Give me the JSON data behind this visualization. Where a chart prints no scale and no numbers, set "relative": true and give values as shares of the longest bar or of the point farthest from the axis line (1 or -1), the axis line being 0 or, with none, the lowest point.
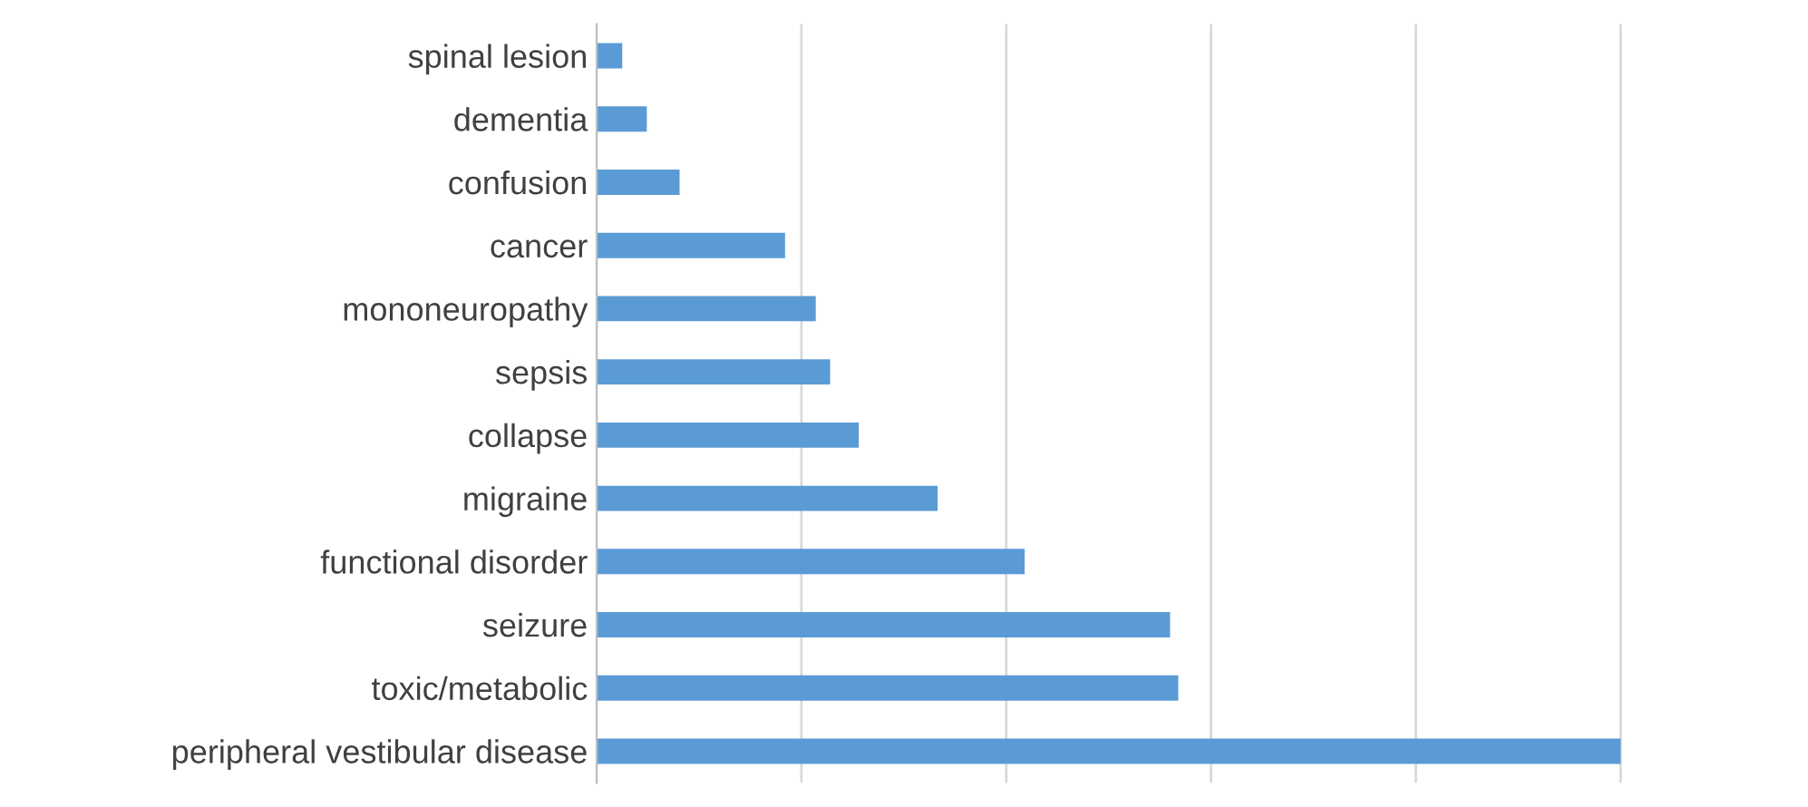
{
  "chart_data": {
    "type": "bar",
    "orientation": "horizontal",
    "relative": true,
    "grid": "x",
    "categories": [
      "spinal lesion",
      "dementia",
      "confusion",
      "cancer",
      "mononeuropathy",
      "sepsis",
      "collapse",
      "migraine",
      "functional disorder",
      "seizure",
      "toxic/metabolic",
      "peripheral vestibular disease"
    ],
    "values": [
      0.025,
      0.049,
      0.081,
      0.184,
      0.214,
      0.228,
      0.256,
      0.333,
      0.418,
      0.56,
      0.568,
      1
    ],
    "color": "#5b9bd5"
  }
}
